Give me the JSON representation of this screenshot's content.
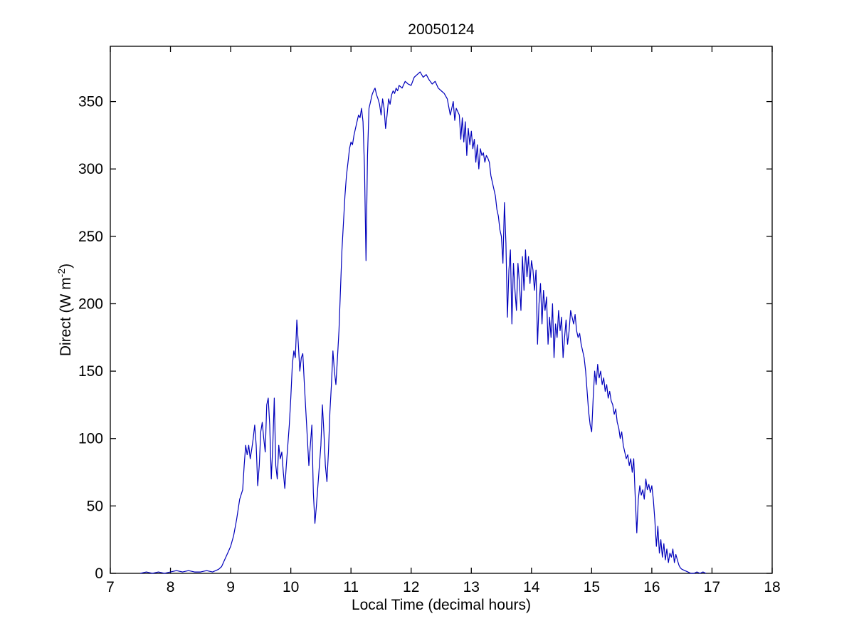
{
  "figure": {
    "title": "20050124",
    "xlabel": "Local Time (decimal hours)",
    "ylabel_prefix": "Direct (W m",
    "ylabel_sup": "-2",
    "ylabel_suffix": ")"
  },
  "chart_data": {
    "type": "line",
    "title": "20050124",
    "xlabel": "Local Time (decimal hours)",
    "ylabel": "Direct (W m^-2)",
    "xlim": [
      7,
      18
    ],
    "ylim": [
      0,
      391
    ],
    "grid": false,
    "legend": "none",
    "line_color": "#0000BB",
    "axis_color": "#000000",
    "xticks": [
      7,
      8,
      9,
      10,
      11,
      12,
      13,
      14,
      15,
      16,
      17,
      18
    ],
    "yticks": [
      0,
      50,
      100,
      150,
      200,
      250,
      300,
      350
    ],
    "points": [
      [
        7.5,
        0
      ],
      [
        7.6,
        1
      ],
      [
        7.7,
        0
      ],
      [
        7.8,
        1
      ],
      [
        7.9,
        0
      ],
      [
        8.0,
        1
      ],
      [
        8.1,
        2
      ],
      [
        8.2,
        1
      ],
      [
        8.3,
        2
      ],
      [
        8.4,
        1
      ],
      [
        8.5,
        1
      ],
      [
        8.6,
        2
      ],
      [
        8.7,
        1
      ],
      [
        8.75,
        2
      ],
      [
        8.8,
        3
      ],
      [
        8.85,
        5
      ],
      [
        8.9,
        10
      ],
      [
        8.95,
        15
      ],
      [
        9.0,
        20
      ],
      [
        9.05,
        28
      ],
      [
        9.1,
        40
      ],
      [
        9.15,
        55
      ],
      [
        9.2,
        62
      ],
      [
        9.225,
        80
      ],
      [
        9.25,
        95
      ],
      [
        9.275,
        88
      ],
      [
        9.3,
        95
      ],
      [
        9.325,
        85
      ],
      [
        9.35,
        92
      ],
      [
        9.375,
        100
      ],
      [
        9.4,
        110
      ],
      [
        9.425,
        95
      ],
      [
        9.45,
        65
      ],
      [
        9.475,
        80
      ],
      [
        9.5,
        105
      ],
      [
        9.525,
        112
      ],
      [
        9.55,
        100
      ],
      [
        9.575,
        90
      ],
      [
        9.6,
        125
      ],
      [
        9.625,
        130
      ],
      [
        9.65,
        110
      ],
      [
        9.675,
        70
      ],
      [
        9.7,
        95
      ],
      [
        9.725,
        130
      ],
      [
        9.75,
        80
      ],
      [
        9.775,
        70
      ],
      [
        9.8,
        95
      ],
      [
        9.825,
        85
      ],
      [
        9.85,
        90
      ],
      [
        9.875,
        75
      ],
      [
        9.9,
        63
      ],
      [
        9.925,
        80
      ],
      [
        9.95,
        95
      ],
      [
        9.975,
        110
      ],
      [
        10.0,
        130
      ],
      [
        10.025,
        155
      ],
      [
        10.05,
        165
      ],
      [
        10.075,
        160
      ],
      [
        10.1,
        188
      ],
      [
        10.125,
        170
      ],
      [
        10.15,
        150
      ],
      [
        10.175,
        160
      ],
      [
        10.2,
        163
      ],
      [
        10.225,
        140
      ],
      [
        10.25,
        120
      ],
      [
        10.275,
        100
      ],
      [
        10.3,
        80
      ],
      [
        10.325,
        95
      ],
      [
        10.35,
        110
      ],
      [
        10.375,
        60
      ],
      [
        10.4,
        37
      ],
      [
        10.425,
        50
      ],
      [
        10.45,
        65
      ],
      [
        10.475,
        80
      ],
      [
        10.5,
        95
      ],
      [
        10.525,
        125
      ],
      [
        10.55,
        105
      ],
      [
        10.575,
        80
      ],
      [
        10.6,
        68
      ],
      [
        10.625,
        90
      ],
      [
        10.65,
        120
      ],
      [
        10.675,
        140
      ],
      [
        10.7,
        165
      ],
      [
        10.725,
        150
      ],
      [
        10.75,
        140
      ],
      [
        10.775,
        160
      ],
      [
        10.8,
        180
      ],
      [
        10.825,
        210
      ],
      [
        10.85,
        240
      ],
      [
        10.875,
        260
      ],
      [
        10.9,
        280
      ],
      [
        10.925,
        295
      ],
      [
        10.95,
        305
      ],
      [
        10.975,
        315
      ],
      [
        11.0,
        320
      ],
      [
        11.025,
        318
      ],
      [
        11.05,
        325
      ],
      [
        11.075,
        330
      ],
      [
        11.1,
        335
      ],
      [
        11.125,
        340
      ],
      [
        11.15,
        338
      ],
      [
        11.175,
        345
      ],
      [
        11.2,
        335
      ],
      [
        11.225,
        300
      ],
      [
        11.25,
        232
      ],
      [
        11.275,
        310
      ],
      [
        11.3,
        345
      ],
      [
        11.325,
        350
      ],
      [
        11.35,
        355
      ],
      [
        11.375,
        358
      ],
      [
        11.4,
        360
      ],
      [
        11.425,
        355
      ],
      [
        11.45,
        352
      ],
      [
        11.475,
        348
      ],
      [
        11.5,
        340
      ],
      [
        11.525,
        352
      ],
      [
        11.55,
        345
      ],
      [
        11.575,
        330
      ],
      [
        11.6,
        340
      ],
      [
        11.625,
        352
      ],
      [
        11.65,
        348
      ],
      [
        11.675,
        355
      ],
      [
        11.7,
        358
      ],
      [
        11.725,
        356
      ],
      [
        11.75,
        360
      ],
      [
        11.775,
        358
      ],
      [
        11.8,
        362
      ],
      [
        11.85,
        360
      ],
      [
        11.9,
        365
      ],
      [
        11.95,
        363
      ],
      [
        12.0,
        362
      ],
      [
        12.05,
        368
      ],
      [
        12.1,
        370
      ],
      [
        12.15,
        372
      ],
      [
        12.2,
        368
      ],
      [
        12.25,
        370
      ],
      [
        12.3,
        366
      ],
      [
        12.35,
        363
      ],
      [
        12.4,
        365
      ],
      [
        12.45,
        360
      ],
      [
        12.5,
        358
      ],
      [
        12.55,
        356
      ],
      [
        12.6,
        352
      ],
      [
        12.65,
        340
      ],
      [
        12.7,
        350
      ],
      [
        12.725,
        336
      ],
      [
        12.75,
        345
      ],
      [
        12.8,
        340
      ],
      [
        12.825,
        322
      ],
      [
        12.85,
        338
      ],
      [
        12.875,
        320
      ],
      [
        12.9,
        335
      ],
      [
        12.925,
        310
      ],
      [
        12.95,
        330
      ],
      [
        12.975,
        318
      ],
      [
        13.0,
        328
      ],
      [
        13.025,
        315
      ],
      [
        13.05,
        322
      ],
      [
        13.075,
        305
      ],
      [
        13.1,
        318
      ],
      [
        13.125,
        300
      ],
      [
        13.15,
        315
      ],
      [
        13.175,
        310
      ],
      [
        13.2,
        312
      ],
      [
        13.225,
        305
      ],
      [
        13.25,
        310
      ],
      [
        13.275,
        308
      ],
      [
        13.3,
        305
      ],
      [
        13.325,
        295
      ],
      [
        13.35,
        290
      ],
      [
        13.375,
        285
      ],
      [
        13.4,
        280
      ],
      [
        13.425,
        270
      ],
      [
        13.45,
        265
      ],
      [
        13.475,
        255
      ],
      [
        13.5,
        250
      ],
      [
        13.525,
        230
      ],
      [
        13.55,
        275
      ],
      [
        13.575,
        245
      ],
      [
        13.6,
        190
      ],
      [
        13.625,
        225
      ],
      [
        13.65,
        240
      ],
      [
        13.675,
        185
      ],
      [
        13.7,
        230
      ],
      [
        13.725,
        210
      ],
      [
        13.75,
        195
      ],
      [
        13.775,
        230
      ],
      [
        13.8,
        215
      ],
      [
        13.825,
        195
      ],
      [
        13.85,
        235
      ],
      [
        13.875,
        210
      ],
      [
        13.9,
        240
      ],
      [
        13.925,
        220
      ],
      [
        13.95,
        235
      ],
      [
        13.975,
        215
      ],
      [
        14.0,
        232
      ],
      [
        14.025,
        225
      ],
      [
        14.05,
        210
      ],
      [
        14.075,
        225
      ],
      [
        14.1,
        170
      ],
      [
        14.125,
        200
      ],
      [
        14.15,
        215
      ],
      [
        14.175,
        185
      ],
      [
        14.2,
        210
      ],
      [
        14.225,
        195
      ],
      [
        14.25,
        205
      ],
      [
        14.275,
        170
      ],
      [
        14.3,
        190
      ],
      [
        14.325,
        175
      ],
      [
        14.35,
        200
      ],
      [
        14.375,
        160
      ],
      [
        14.4,
        185
      ],
      [
        14.425,
        175
      ],
      [
        14.45,
        195
      ],
      [
        14.475,
        180
      ],
      [
        14.5,
        190
      ],
      [
        14.525,
        160
      ],
      [
        14.55,
        175
      ],
      [
        14.575,
        188
      ],
      [
        14.6,
        170
      ],
      [
        14.625,
        180
      ],
      [
        14.65,
        195
      ],
      [
        14.675,
        190
      ],
      [
        14.7,
        185
      ],
      [
        14.725,
        192
      ],
      [
        14.75,
        180
      ],
      [
        14.775,
        175
      ],
      [
        14.8,
        178
      ],
      [
        14.825,
        170
      ],
      [
        14.85,
        165
      ],
      [
        14.875,
        160
      ],
      [
        14.9,
        150
      ],
      [
        14.925,
        135
      ],
      [
        14.95,
        120
      ],
      [
        14.975,
        110
      ],
      [
        15.0,
        105
      ],
      [
        15.025,
        130
      ],
      [
        15.05,
        150
      ],
      [
        15.075,
        140
      ],
      [
        15.1,
        155
      ],
      [
        15.125,
        145
      ],
      [
        15.15,
        150
      ],
      [
        15.175,
        140
      ],
      [
        15.2,
        145
      ],
      [
        15.225,
        135
      ],
      [
        15.25,
        140
      ],
      [
        15.275,
        130
      ],
      [
        15.3,
        135
      ],
      [
        15.325,
        128
      ],
      [
        15.35,
        125
      ],
      [
        15.375,
        118
      ],
      [
        15.4,
        122
      ],
      [
        15.425,
        112
      ],
      [
        15.45,
        108
      ],
      [
        15.475,
        100
      ],
      [
        15.5,
        105
      ],
      [
        15.525,
        95
      ],
      [
        15.55,
        90
      ],
      [
        15.575,
        85
      ],
      [
        15.6,
        88
      ],
      [
        15.625,
        80
      ],
      [
        15.65,
        85
      ],
      [
        15.675,
        75
      ],
      [
        15.7,
        85
      ],
      [
        15.725,
        55
      ],
      [
        15.75,
        30
      ],
      [
        15.775,
        55
      ],
      [
        15.8,
        65
      ],
      [
        15.825,
        58
      ],
      [
        15.85,
        62
      ],
      [
        15.875,
        55
      ],
      [
        15.9,
        70
      ],
      [
        15.925,
        62
      ],
      [
        15.95,
        66
      ],
      [
        15.975,
        60
      ],
      [
        16.0,
        65
      ],
      [
        16.025,
        55
      ],
      [
        16.05,
        40
      ],
      [
        16.075,
        20
      ],
      [
        16.1,
        35
      ],
      [
        16.125,
        15
      ],
      [
        16.15,
        25
      ],
      [
        16.175,
        12
      ],
      [
        16.2,
        22
      ],
      [
        16.225,
        10
      ],
      [
        16.25,
        18
      ],
      [
        16.275,
        8
      ],
      [
        16.3,
        15
      ],
      [
        16.325,
        12
      ],
      [
        16.35,
        18
      ],
      [
        16.375,
        8
      ],
      [
        16.4,
        14
      ],
      [
        16.425,
        10
      ],
      [
        16.45,
        6
      ],
      [
        16.475,
        4
      ],
      [
        16.5,
        3
      ],
      [
        16.55,
        2
      ],
      [
        16.6,
        1
      ],
      [
        16.65,
        0
      ],
      [
        16.7,
        0
      ],
      [
        16.75,
        1
      ],
      [
        16.8,
        0
      ],
      [
        16.85,
        1
      ],
      [
        16.9,
        0
      ]
    ]
  }
}
